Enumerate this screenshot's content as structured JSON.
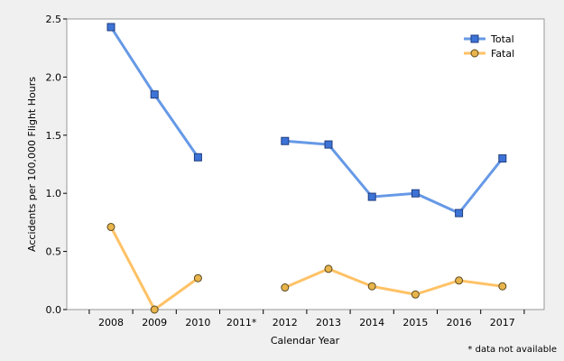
{
  "chart_data": {
    "type": "line",
    "title": "",
    "xlabel": "Calendar Year",
    "ylabel": "Accidents per 100,000 Flight Hours",
    "categories": [
      "2008",
      "2009",
      "2010",
      "2011*",
      "2012",
      "2013",
      "2014",
      "2015",
      "2016",
      "2017"
    ],
    "ylim": [
      0,
      2.5
    ],
    "yticks": [
      "0.0",
      "0.5",
      "1.0",
      "1.5",
      "2.0",
      "2.5"
    ],
    "grid": false,
    "legend_position": "top-right",
    "series": [
      {
        "name": "Total",
        "color": "#6699e6",
        "marker": "square",
        "marker_fill": "#3d73d6",
        "values": [
          2.43,
          1.85,
          1.31,
          null,
          1.45,
          1.42,
          0.97,
          1.0,
          0.83,
          1.3
        ]
      },
      {
        "name": "Fatal",
        "color": "#ffc266",
        "marker": "circle",
        "marker_fill": "#e8b44c",
        "values": [
          0.71,
          0.0,
          0.27,
          null,
          0.19,
          0.35,
          0.2,
          0.13,
          0.25,
          0.2
        ]
      }
    ],
    "annotation": "* data not available"
  }
}
